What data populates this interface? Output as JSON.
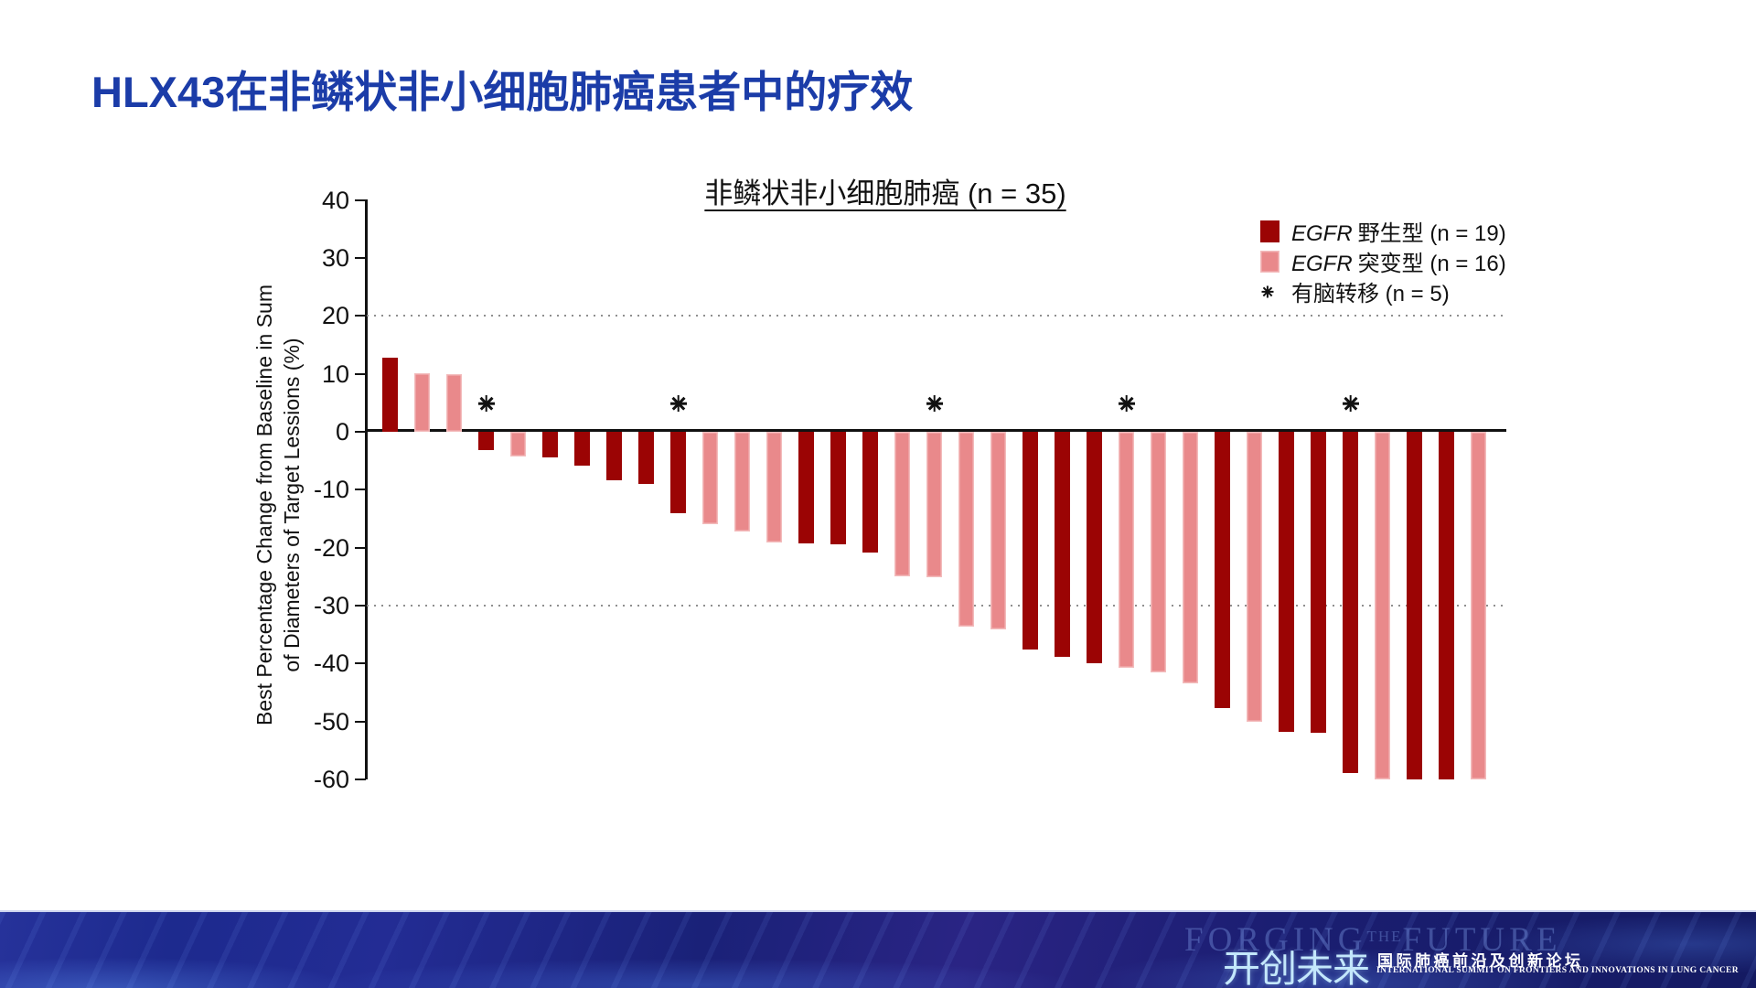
{
  "slide_title": "HLX43在非鳞状非小细胞肺癌患者中的疗效",
  "chart_data": {
    "type": "bar",
    "title": "非鳞状非小细胞肺癌 (n = 35)",
    "ylabel_line1": "Best Percentage Change from Baseline in Sum",
    "ylabel_line2": "of Diameters of Target Lessions (%)",
    "ylim": [
      -60,
      40
    ],
    "ytick_step": 10,
    "dotted_gridlines": [
      20,
      -30
    ],
    "grid": "dotted reference lines at +20 and -30 only",
    "legend_position": "top-right",
    "colors": {
      "wild_type": "#9B0404",
      "mutant": "#E9898B"
    },
    "legend": [
      {
        "gene": "EGFR",
        "label": "野生型 (n = 19)",
        "series": "wild_type"
      },
      {
        "gene": "EGFR",
        "label": "突变型 (n = 16)",
        "series": "mutant"
      },
      {
        "symbol": "*",
        "label": "有脑转移 (n = 5)"
      }
    ],
    "bars": [
      {
        "value": 12.8,
        "group": "wild_type",
        "brain_met": false
      },
      {
        "value": 10.1,
        "group": "mutant",
        "brain_met": false
      },
      {
        "value": 10.0,
        "group": "mutant",
        "brain_met": false
      },
      {
        "value": -3.2,
        "group": "wild_type",
        "brain_met": true
      },
      {
        "value": -4.2,
        "group": "mutant",
        "brain_met": false
      },
      {
        "value": -4.4,
        "group": "wild_type",
        "brain_met": false
      },
      {
        "value": -5.8,
        "group": "wild_type",
        "brain_met": false
      },
      {
        "value": -8.3,
        "group": "wild_type",
        "brain_met": false
      },
      {
        "value": -9.0,
        "group": "wild_type",
        "brain_met": false
      },
      {
        "value": -14.1,
        "group": "wild_type",
        "brain_met": true
      },
      {
        "value": -15.9,
        "group": "mutant",
        "brain_met": false
      },
      {
        "value": -17.2,
        "group": "mutant",
        "brain_met": false
      },
      {
        "value": -19.1,
        "group": "mutant",
        "brain_met": false
      },
      {
        "value": -19.3,
        "group": "wild_type",
        "brain_met": false
      },
      {
        "value": -19.5,
        "group": "wild_type",
        "brain_met": false
      },
      {
        "value": -20.9,
        "group": "wild_type",
        "brain_met": false
      },
      {
        "value": -25.0,
        "group": "mutant",
        "brain_met": false
      },
      {
        "value": -25.1,
        "group": "mutant",
        "brain_met": true
      },
      {
        "value": -33.7,
        "group": "mutant",
        "brain_met": false
      },
      {
        "value": -34.2,
        "group": "mutant",
        "brain_met": false
      },
      {
        "value": -37.6,
        "group": "wild_type",
        "brain_met": false
      },
      {
        "value": -38.8,
        "group": "wild_type",
        "brain_met": false
      },
      {
        "value": -40.0,
        "group": "wild_type",
        "brain_met": false
      },
      {
        "value": -40.8,
        "group": "mutant",
        "brain_met": true
      },
      {
        "value": -41.6,
        "group": "mutant",
        "brain_met": false
      },
      {
        "value": -43.5,
        "group": "mutant",
        "brain_met": false
      },
      {
        "value": -47.7,
        "group": "wild_type",
        "brain_met": false
      },
      {
        "value": -50.1,
        "group": "mutant",
        "brain_met": false
      },
      {
        "value": -51.8,
        "group": "wild_type",
        "brain_met": false
      },
      {
        "value": -51.9,
        "group": "wild_type",
        "brain_met": false
      },
      {
        "value": -59.0,
        "group": "wild_type",
        "brain_met": true
      },
      {
        "value": -60.0,
        "group": "mutant",
        "brain_met": false
      },
      {
        "value": -60.0,
        "group": "wild_type",
        "brain_met": false
      },
      {
        "value": -60.0,
        "group": "wild_type",
        "brain_met": false
      },
      {
        "value": -60.0,
        "group": "mutant",
        "brain_met": false
      }
    ]
  },
  "footer": {
    "watermark_part1": "FORGING",
    "watermark_part2": "THE",
    "watermark_part3": "FUTURE",
    "brand_cn": "开创未来",
    "summit_cn": "国际肺癌前沿及创新论坛",
    "summit_en": "INTERNATIONAL SUMMIT ON FRONTIERS AND INNOVATIONS IN LUNG CANCER"
  }
}
